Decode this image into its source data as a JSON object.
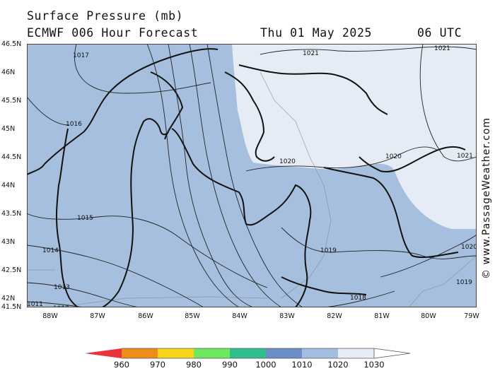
{
  "header": {
    "title_line1": "Surface Pressure (mb)",
    "title_line2": "ECMWF 006 Hour Forecast",
    "date": "Thu 01 May 2025",
    "time": "06 UTC"
  },
  "axes": {
    "lat_labels": [
      "46.5N",
      "46N",
      "45.5N",
      "45N",
      "44.5N",
      "44N",
      "43.5N",
      "43N",
      "42.5N",
      "42N",
      "41.5N"
    ],
    "lon_labels": [
      "88W",
      "87W",
      "86W",
      "85W",
      "84W",
      "83W",
      "82W",
      "81W",
      "80W",
      "79W"
    ]
  },
  "isobar_labels": [
    "1017",
    "1021",
    "1021",
    "1016",
    "1020",
    "1020",
    "1021",
    "1015",
    "1014",
    "1019",
    "1020",
    "1013",
    "1012",
    "1018",
    "1019",
    "1011"
  ],
  "legend": {
    "labels": [
      "960",
      "970",
      "980",
      "990",
      "1000",
      "1010",
      "1020",
      "1030"
    ],
    "colors": [
      "#e8333a",
      "#f08c1c",
      "#f7d51a",
      "#6ee85c",
      "#2fbf8f",
      "#6b8ec9",
      "#a3bde0",
      "#e6edf7",
      "#ffffff"
    ]
  },
  "fill_colors": {
    "low_band": "#a6bfdf",
    "high_band": "#e6ecf6",
    "gridline": "#888888",
    "border": "#999999"
  },
  "copyright": "© www.PassageWeather.com"
}
